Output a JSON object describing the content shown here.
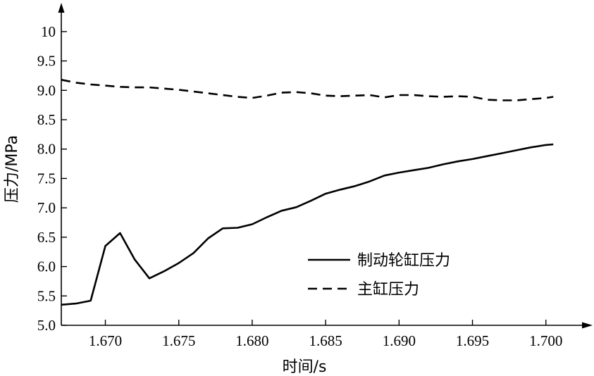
{
  "chart_data": {
    "type": "line",
    "title": "",
    "xlabel": "时间/s",
    "ylabel": "压力/MPa",
    "xlim": [
      1.667,
      1.7015
    ],
    "ylim": [
      5.0,
      10.25
    ],
    "xticks": [
      1.67,
      1.675,
      1.68,
      1.685,
      1.69,
      1.695,
      1.7
    ],
    "xtick_labels": [
      "1.670",
      "1.675",
      "1.680",
      "1.685",
      "1.690",
      "1.695",
      "1.700"
    ],
    "yticks": [
      5.0,
      5.5,
      6.0,
      6.5,
      7.0,
      7.5,
      8.0,
      8.5,
      9.0,
      9.5,
      10.0
    ],
    "ytick_labels": [
      "5.0",
      "5.5",
      "6.0",
      "6.5",
      "7.0",
      "7.5",
      "8.0",
      "8.5",
      "9.0",
      "9.5",
      "10"
    ],
    "grid": false,
    "legend_position": "lower-right",
    "series": [
      {
        "name": "制动轮缸压力",
        "style": "solid",
        "color": "#000000",
        "x": [
          1.667,
          1.668,
          1.669,
          1.67,
          1.671,
          1.672,
          1.673,
          1.674,
          1.675,
          1.676,
          1.677,
          1.678,
          1.679,
          1.68,
          1.681,
          1.682,
          1.683,
          1.684,
          1.685,
          1.686,
          1.687,
          1.688,
          1.689,
          1.69,
          1.691,
          1.692,
          1.693,
          1.694,
          1.695,
          1.696,
          1.697,
          1.698,
          1.699,
          1.7,
          1.7005
        ],
        "y": [
          5.35,
          5.37,
          5.42,
          6.35,
          6.57,
          6.12,
          5.8,
          5.92,
          6.06,
          6.23,
          6.48,
          6.65,
          6.66,
          6.72,
          6.84,
          6.95,
          7.01,
          7.12,
          7.24,
          7.31,
          7.37,
          7.45,
          7.55,
          7.6,
          7.64,
          7.68,
          7.74,
          7.79,
          7.83,
          7.88,
          7.93,
          7.98,
          8.03,
          8.07,
          8.08
        ]
      },
      {
        "name": "主缸压力",
        "style": "dashed",
        "color": "#000000",
        "x": [
          1.667,
          1.668,
          1.669,
          1.67,
          1.671,
          1.672,
          1.673,
          1.674,
          1.675,
          1.676,
          1.677,
          1.678,
          1.679,
          1.68,
          1.681,
          1.682,
          1.683,
          1.684,
          1.685,
          1.686,
          1.687,
          1.688,
          1.689,
          1.69,
          1.691,
          1.692,
          1.693,
          1.694,
          1.695,
          1.696,
          1.697,
          1.698,
          1.699,
          1.7,
          1.7005
        ],
        "y": [
          9.18,
          9.13,
          9.1,
          9.08,
          9.06,
          9.05,
          9.05,
          9.03,
          9.01,
          8.98,
          8.95,
          8.92,
          8.89,
          8.87,
          8.91,
          8.96,
          8.97,
          8.95,
          8.91,
          8.9,
          8.91,
          8.92,
          8.88,
          8.92,
          8.92,
          8.9,
          8.89,
          8.9,
          8.89,
          8.84,
          8.83,
          8.83,
          8.85,
          8.87,
          8.89
        ]
      }
    ]
  }
}
